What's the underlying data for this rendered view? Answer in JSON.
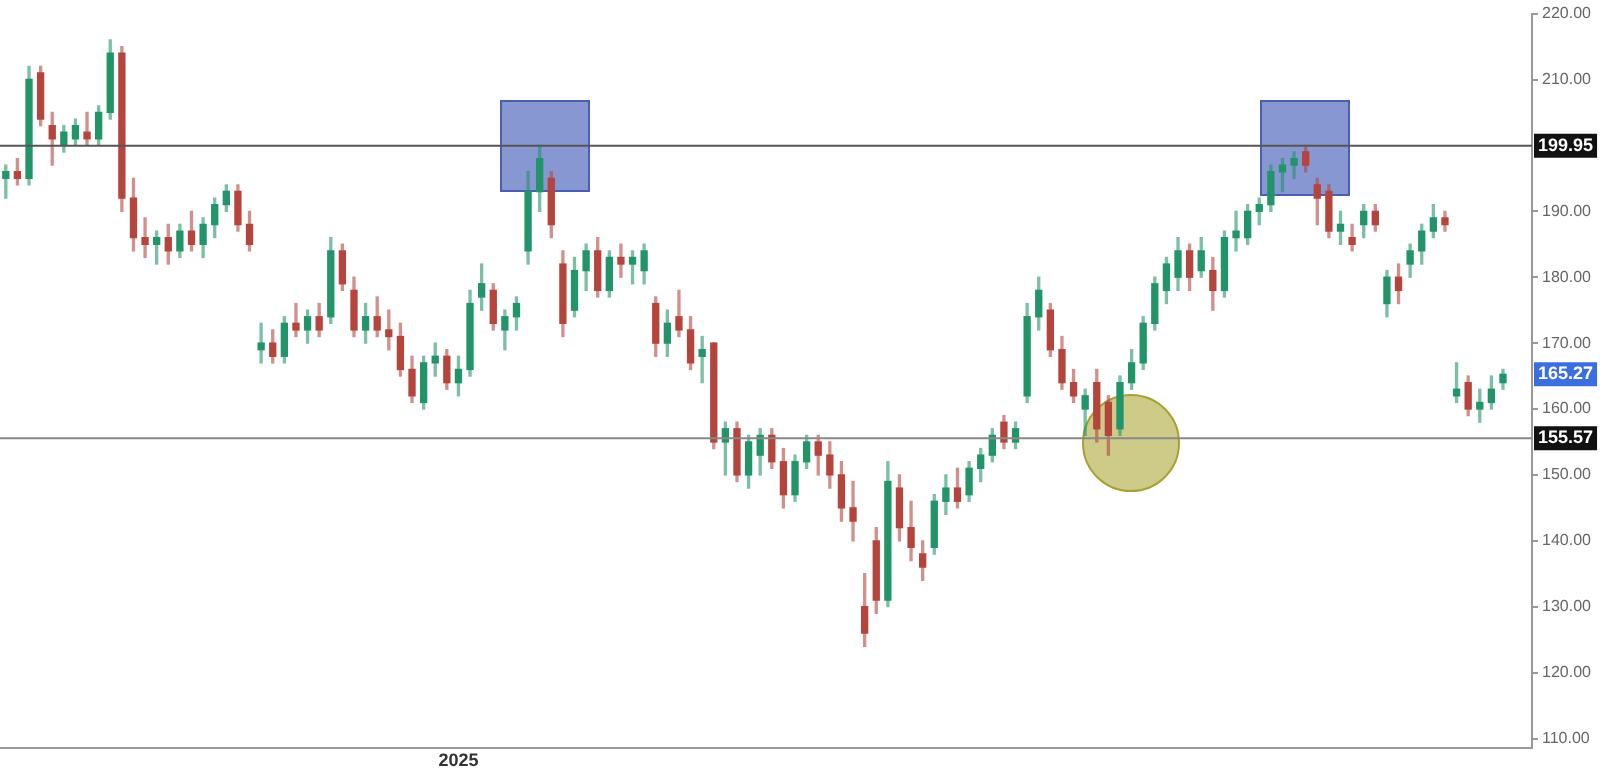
{
  "chart_data": {
    "type": "candlestick",
    "categories": [
      null,
      null,
      null,
      null,
      null,
      null,
      null,
      null,
      null,
      null,
      null,
      null,
      null,
      null,
      null,
      null,
      null,
      null,
      null,
      null,
      null,
      null,
      null,
      null,
      null,
      null,
      null,
      null,
      null,
      null,
      null,
      null,
      null,
      null,
      null,
      null,
      null,
      null,
      null,
      "2025",
      null,
      null,
      null,
      null,
      null,
      null,
      null,
      null,
      null,
      null,
      null,
      null,
      null,
      null,
      null,
      null,
      null,
      null,
      null,
      null,
      null,
      null,
      null,
      null,
      null,
      null,
      null,
      null,
      null,
      null,
      null,
      null,
      null,
      null,
      null,
      null,
      null,
      null,
      null,
      null,
      null,
      null,
      null,
      null,
      null,
      null,
      null,
      null,
      null,
      null,
      null,
      null,
      null,
      null,
      null,
      null,
      null,
      null,
      null,
      null,
      null,
      null,
      null,
      null,
      null,
      null,
      null,
      null,
      null,
      null,
      null,
      null,
      null,
      null,
      null,
      null,
      null,
      null,
      null,
      null,
      null,
      null,
      null,
      null,
      null,
      null,
      null,
      null,
      null,
      null,
      null,
      null
    ],
    "ohlc": [
      [
        195,
        197,
        192,
        196
      ],
      [
        196,
        198,
        194,
        195
      ],
      [
        195,
        212,
        194,
        210
      ],
      [
        211,
        212,
        203,
        204
      ],
      [
        203,
        205,
        197,
        201
      ],
      [
        200,
        203,
        199,
        202
      ],
      [
        201,
        204,
        200,
        203
      ],
      [
        202,
        205,
        200,
        201
      ],
      [
        201,
        206,
        200,
        205
      ],
      [
        205,
        216,
        204,
        214
      ],
      [
        214,
        215,
        190,
        192
      ],
      [
        192,
        195,
        184,
        186
      ],
      [
        186,
        189,
        183,
        185
      ],
      [
        185,
        187,
        182,
        186
      ],
      [
        186,
        188,
        182,
        184
      ],
      [
        184,
        188,
        183,
        187
      ],
      [
        187,
        190,
        184,
        185
      ],
      [
        185,
        189,
        183,
        188
      ],
      [
        188,
        192,
        186,
        191
      ],
      [
        191,
        194,
        190,
        193
      ],
      [
        193,
        194,
        187,
        188
      ],
      [
        188,
        190,
        184,
        185
      ],
      [
        169,
        173,
        167,
        170
      ],
      [
        170,
        172,
        167,
        168
      ],
      [
        168,
        174,
        167,
        173
      ],
      [
        173,
        176,
        171,
        172
      ],
      [
        172,
        175,
        170,
        174
      ],
      [
        174,
        176,
        171,
        172
      ],
      [
        174,
        186,
        173,
        184
      ],
      [
        184,
        185,
        178,
        179
      ],
      [
        178,
        180,
        171,
        172
      ],
      [
        172,
        176,
        170,
        174
      ],
      [
        174,
        177,
        171,
        172
      ],
      [
        172,
        175,
        169,
        171
      ],
      [
        171,
        173,
        165,
        166
      ],
      [
        166,
        168,
        161,
        162
      ],
      [
        161,
        168,
        160,
        167
      ],
      [
        167,
        170,
        165,
        168
      ],
      [
        168,
        169,
        163,
        164
      ],
      [
        164,
        168,
        162,
        166
      ],
      [
        166,
        178,
        165,
        176
      ],
      [
        177,
        182,
        175,
        179
      ],
      [
        178,
        179,
        172,
        173
      ],
      [
        172,
        175,
        169,
        174
      ],
      [
        174,
        177,
        172,
        176
      ],
      [
        184,
        196,
        182,
        193
      ],
      [
        193,
        200,
        190,
        198
      ],
      [
        195,
        196,
        186,
        188
      ],
      [
        182,
        184,
        171,
        173
      ],
      [
        175,
        183,
        174,
        181
      ],
      [
        181,
        185,
        178,
        184
      ],
      [
        184,
        186,
        177,
        178
      ],
      [
        178,
        184,
        177,
        183
      ],
      [
        183,
        185,
        180,
        182
      ],
      [
        182,
        184,
        179,
        183
      ],
      [
        181,
        185,
        179,
        184
      ],
      [
        176,
        177,
        168,
        170
      ],
      [
        170,
        175,
        168,
        173
      ],
      [
        174,
        178,
        171,
        172
      ],
      [
        172,
        174,
        166,
        167
      ],
      [
        168,
        171,
        164,
        169
      ],
      [
        170,
        170,
        154,
        155
      ],
      [
        155,
        158,
        150,
        157
      ],
      [
        157,
        158,
        149,
        150
      ],
      [
        150,
        156,
        148,
        155
      ],
      [
        153,
        157,
        150,
        156
      ],
      [
        156,
        157,
        151,
        152
      ],
      [
        152,
        154,
        145,
        147
      ],
      [
        147,
        153,
        146,
        152
      ],
      [
        152,
        156,
        151,
        155
      ],
      [
        155,
        156,
        150,
        153
      ],
      [
        153,
        155,
        148,
        150
      ],
      [
        150,
        152,
        143,
        145
      ],
      [
        145,
        149,
        140,
        143
      ],
      [
        130,
        135,
        124,
        126
      ],
      [
        140,
        142,
        129,
        131
      ],
      [
        131,
        152,
        130,
        149
      ],
      [
        148,
        150,
        140,
        142
      ],
      [
        142,
        146,
        137,
        139
      ],
      [
        138,
        140,
        134,
        136
      ],
      [
        139,
        147,
        138,
        146
      ],
      [
        146,
        150,
        144,
        148
      ],
      [
        148,
        151,
        145,
        146
      ],
      [
        147,
        152,
        146,
        151
      ],
      [
        151,
        154,
        149,
        153
      ],
      [
        153,
        157,
        152,
        156
      ],
      [
        158,
        159,
        154,
        155
      ],
      [
        155,
        158,
        154,
        157
      ],
      [
        162,
        176,
        161,
        174
      ],
      [
        174,
        180,
        172,
        178
      ],
      [
        175,
        176,
        168,
        169
      ],
      [
        169,
        171,
        163,
        164
      ],
      [
        164,
        166,
        161,
        162
      ],
      [
        160,
        163,
        156,
        162
      ],
      [
        164,
        166,
        155,
        157
      ],
      [
        161,
        162,
        153,
        156
      ],
      [
        157,
        165,
        156,
        164
      ],
      [
        164,
        169,
        163,
        167
      ],
      [
        167,
        174,
        166,
        173
      ],
      [
        173,
        180,
        172,
        179
      ],
      [
        178,
        183,
        176,
        182
      ],
      [
        180,
        186,
        178,
        184
      ],
      [
        184,
        185,
        178,
        180
      ],
      [
        181,
        186,
        180,
        184
      ],
      [
        181,
        183,
        175,
        178
      ],
      [
        178,
        187,
        177,
        186
      ],
      [
        186,
        190,
        184,
        187
      ],
      [
        186,
        191,
        185,
        190
      ],
      [
        190,
        192,
        188,
        191
      ],
      [
        191,
        197,
        190,
        196
      ],
      [
        196,
        198,
        193,
        197
      ],
      [
        197,
        199,
        195,
        198
      ],
      [
        199,
        200,
        196,
        197
      ],
      [
        194,
        195,
        188,
        192
      ],
      [
        193,
        194,
        186,
        187
      ],
      [
        187,
        190,
        185,
        188
      ],
      [
        186,
        188,
        184,
        185
      ],
      [
        188,
        191,
        186,
        190
      ],
      [
        190,
        191,
        187,
        188
      ],
      [
        176,
        181,
        174,
        180
      ],
      [
        180,
        182,
        176,
        178
      ],
      [
        182,
        185,
        180,
        184
      ],
      [
        184,
        188,
        182,
        187
      ],
      [
        187,
        191,
        186,
        189
      ],
      [
        189,
        190,
        187,
        188
      ],
      [
        162,
        167,
        161,
        163
      ],
      [
        164,
        165,
        159,
        160
      ],
      [
        160,
        163,
        158,
        161
      ],
      [
        161,
        165,
        160,
        163
      ],
      [
        164,
        166,
        163,
        165.27
      ],
      null,
      null
    ],
    "colors": [
      "#22946a",
      "#b5443d",
      "#22946a",
      "#b5443d",
      "#b5443d",
      "#22946a",
      "#22946a",
      "#b5443d",
      "#22946a",
      "#22946a",
      "#b5443d",
      "#b5443d",
      "#b5443d",
      "#22946a",
      "#b5443d",
      "#22946a",
      "#b5443d",
      "#22946a",
      "#22946a",
      "#22946a",
      "#b5443d",
      "#b5443d",
      "#22946a",
      "#b5443d",
      "#22946a",
      "#b5443d",
      "#22946a",
      "#b5443d",
      "#22946a",
      "#b5443d",
      "#b5443d",
      "#22946a",
      "#b5443d",
      "#b5443d",
      "#b5443d",
      "#b5443d",
      "#22946a",
      "#22946a",
      "#b5443d",
      "#22946a",
      "#22946a",
      "#22946a",
      "#b5443d",
      "#22946a",
      "#22946a",
      "#22946a",
      "#22946a",
      "#b5443d",
      "#b5443d",
      "#22946a",
      "#22946a",
      "#b5443d",
      "#22946a",
      "#b5443d",
      "#22946a",
      "#22946a",
      "#b5443d",
      "#22946a",
      "#b5443d",
      "#b5443d",
      "#22946a",
      "#b5443d",
      "#22946a",
      "#b5443d",
      "#22946a",
      "#22946a",
      "#b5443d",
      "#b5443d",
      "#22946a",
      "#22946a",
      "#b5443d",
      "#b5443d",
      "#b5443d",
      "#b5443d",
      "#b5443d",
      "#b5443d",
      "#22946a",
      "#b5443d",
      "#b5443d",
      "#b5443d",
      "#22946a",
      "#22946a",
      "#b5443d",
      "#22946a",
      "#22946a",
      "#22946a",
      "#b5443d",
      "#22946a",
      "#22946a",
      "#22946a",
      "#b5443d",
      "#b5443d",
      "#b5443d",
      "#22946a",
      "#b5443d",
      "#b5443d",
      "#22946a",
      "#22946a",
      "#22946a",
      "#22946a",
      "#22946a",
      "#22946a",
      "#b5443d",
      "#22946a",
      "#b5443d",
      "#22946a",
      "#22946a",
      "#22946a",
      "#22946a",
      "#22946a",
      "#22946a",
      "#22946a",
      "#b5443d",
      "#b5443d",
      "#b5443d",
      "#22946a",
      "#b5443d",
      "#22946a",
      "#b5443d",
      "#22946a",
      "#b5443d",
      "#22946a",
      "#22946a",
      "#22946a",
      "#b5443d",
      "#22946a",
      "#b5443d",
      "#22946a",
      "#22946a",
      "#22946a",
      null,
      null
    ],
    "ylim": [
      108.5,
      220
    ],
    "yticks": [
      {
        "value": 110,
        "label": "110.00"
      },
      {
        "value": 120,
        "label": "120.00"
      },
      {
        "value": 130,
        "label": "130.00"
      },
      {
        "value": 140,
        "label": "140.00"
      },
      {
        "value": 150,
        "label": "150.00"
      },
      {
        "value": 160,
        "label": "160.00"
      },
      {
        "value": 170,
        "label": "170.00"
      },
      {
        "value": 180,
        "label": "180.00"
      },
      {
        "value": 190,
        "label": "190.00"
      },
      {
        "value": 210,
        "label": "210.00"
      },
      {
        "value": 220,
        "label": "220.00"
      }
    ],
    "ref_lines": [
      {
        "axis": "y",
        "value": 199.95,
        "label": "199.95",
        "color": "#555555"
      },
      {
        "axis": "y",
        "value": 155.57,
        "label": "155.57",
        "color": "#888888"
      }
    ],
    "annotations": [
      {
        "text": "165.27",
        "y": 165.27
      }
    ]
  }
}
